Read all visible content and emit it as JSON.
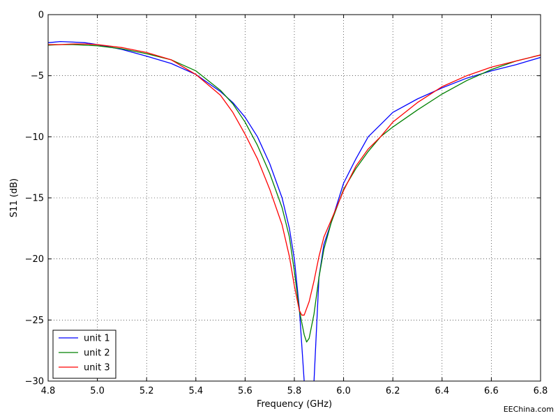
{
  "chart_data": {
    "type": "line",
    "title": "",
    "xlabel": "Frequency (GHz)",
    "ylabel": "S11 (dB)",
    "xlim": [
      4.8,
      6.8
    ],
    "ylim": [
      -30,
      0
    ],
    "xticks": [
      4.8,
      5.0,
      5.2,
      5.4,
      5.6,
      5.8,
      6.0,
      6.2,
      6.4,
      6.6,
      6.8
    ],
    "xtick_labels": [
      "4.8",
      "5.0",
      "5.2",
      "5.4",
      "5.6",
      "5.8",
      "6.0",
      "6.2",
      "6.4",
      "6.6",
      "6.8"
    ],
    "yticks": [
      0,
      -5,
      -10,
      -15,
      -20,
      -25,
      -30
    ],
    "ytick_labels": [
      "0",
      "−5",
      "−10",
      "−15",
      "−20",
      "−25",
      "−30"
    ],
    "grid": true,
    "legend_position": "bottom-left",
    "series": [
      {
        "name": "unit 1",
        "color": "#0000ff",
        "x": [
          4.8,
          4.85,
          4.9,
          4.95,
          5.0,
          5.1,
          5.2,
          5.3,
          5.4,
          5.5,
          5.55,
          5.6,
          5.65,
          5.7,
          5.75,
          5.78,
          5.8,
          5.82,
          5.84,
          5.86,
          5.88,
          5.9,
          5.92,
          5.95,
          6.0,
          6.05,
          6.1,
          6.15,
          6.2,
          6.3,
          6.4,
          6.5,
          6.6,
          6.7,
          6.8
        ],
        "y": [
          -2.3,
          -2.2,
          -2.25,
          -2.3,
          -2.45,
          -2.85,
          -3.4,
          -4.0,
          -4.9,
          -6.3,
          -7.2,
          -8.4,
          -10.0,
          -12.2,
          -15.0,
          -17.5,
          -20.0,
          -24.0,
          -30.0,
          -31.5,
          -30.0,
          -21.5,
          -18.8,
          -17.0,
          -13.8,
          -11.8,
          -10.0,
          -9.0,
          -8.0,
          -6.9,
          -6.0,
          -5.2,
          -4.6,
          -4.1,
          -3.5
        ]
      },
      {
        "name": "unit 2",
        "color": "#008000",
        "x": [
          4.8,
          4.85,
          4.9,
          4.95,
          5.0,
          5.1,
          5.2,
          5.3,
          5.4,
          5.5,
          5.55,
          5.6,
          5.65,
          5.7,
          5.75,
          5.78,
          5.8,
          5.82,
          5.84,
          5.85,
          5.86,
          5.88,
          5.9,
          5.92,
          5.95,
          6.0,
          6.05,
          6.1,
          6.15,
          6.2,
          6.3,
          6.4,
          6.5,
          6.6,
          6.7,
          6.8
        ],
        "y": [
          -2.5,
          -2.45,
          -2.45,
          -2.5,
          -2.55,
          -2.8,
          -3.2,
          -3.7,
          -4.6,
          -6.2,
          -7.3,
          -8.8,
          -10.7,
          -13.0,
          -15.8,
          -18.2,
          -21.0,
          -24.2,
          -26.2,
          -26.8,
          -26.5,
          -24.5,
          -21.5,
          -19.2,
          -17.0,
          -14.3,
          -12.6,
          -11.2,
          -10.0,
          -9.2,
          -7.8,
          -6.5,
          -5.4,
          -4.5,
          -3.8,
          -3.3
        ]
      },
      {
        "name": "unit 3",
        "color": "#ff0000",
        "x": [
          4.8,
          4.85,
          4.9,
          4.95,
          5.0,
          5.1,
          5.2,
          5.3,
          5.4,
          5.5,
          5.55,
          5.6,
          5.65,
          5.7,
          5.75,
          5.78,
          5.8,
          5.82,
          5.83,
          5.84,
          5.86,
          5.88,
          5.9,
          5.92,
          5.95,
          6.0,
          6.05,
          6.1,
          6.15,
          6.2,
          6.3,
          6.4,
          6.5,
          6.6,
          6.7,
          6.8
        ],
        "y": [
          -2.45,
          -2.45,
          -2.4,
          -2.4,
          -2.45,
          -2.7,
          -3.1,
          -3.7,
          -4.9,
          -6.6,
          -8.0,
          -9.8,
          -11.8,
          -14.3,
          -17.2,
          -19.8,
          -22.2,
          -24.2,
          -24.6,
          -24.6,
          -23.5,
          -21.8,
          -19.8,
          -18.2,
          -16.8,
          -14.4,
          -12.4,
          -11.0,
          -10.0,
          -8.8,
          -7.2,
          -5.9,
          -5.0,
          -4.3,
          -3.8,
          -3.3
        ]
      }
    ]
  },
  "watermark": "EEChina.com"
}
